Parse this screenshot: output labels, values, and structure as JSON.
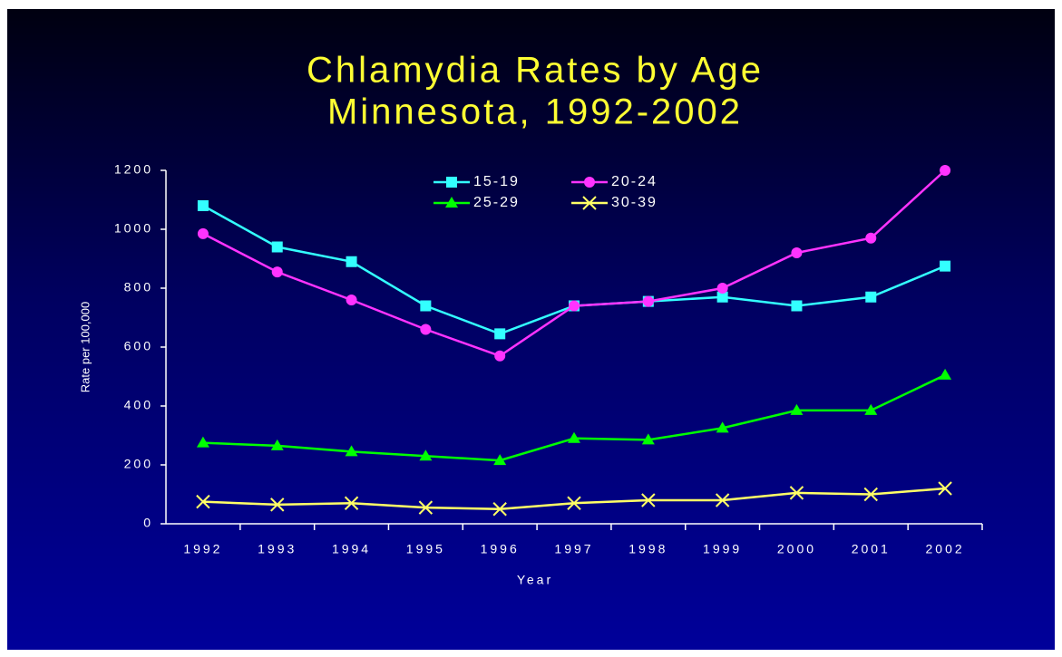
{
  "chart_data": {
    "type": "line",
    "title": [
      "Chlamydia Rates by Age",
      "Minnesota, 1992-2002"
    ],
    "xlabel": "Year",
    "ylabel": "Rate per 100,000",
    "categories": [
      "1992",
      "1993",
      "1994",
      "1995",
      "1996",
      "1997",
      "1998",
      "1999",
      "2000",
      "2001",
      "2002"
    ],
    "series": [
      {
        "name": "15-19",
        "color": "#33ffff",
        "marker": "square",
        "values": [
          1080,
          940,
          890,
          740,
          645,
          740,
          755,
          770,
          740,
          770,
          875
        ]
      },
      {
        "name": "20-24",
        "color": "#ff33ff",
        "marker": "circle",
        "values": [
          985,
          855,
          760,
          660,
          570,
          740,
          755,
          800,
          920,
          970,
          1200
        ]
      },
      {
        "name": "25-29",
        "color": "#00ff00",
        "marker": "triangle",
        "values": [
          275,
          265,
          245,
          230,
          215,
          290,
          285,
          325,
          385,
          385,
          505
        ]
      },
      {
        "name": "30-39",
        "color": "#ffff66",
        "marker": "x",
        "values": [
          75,
          65,
          70,
          55,
          50,
          70,
          80,
          80,
          105,
          100,
          120
        ]
      }
    ],
    "ylim": [
      0,
      1200
    ],
    "yticks": [
      0,
      200,
      400,
      600,
      800,
      1000,
      1200
    ],
    "legend": "top"
  }
}
